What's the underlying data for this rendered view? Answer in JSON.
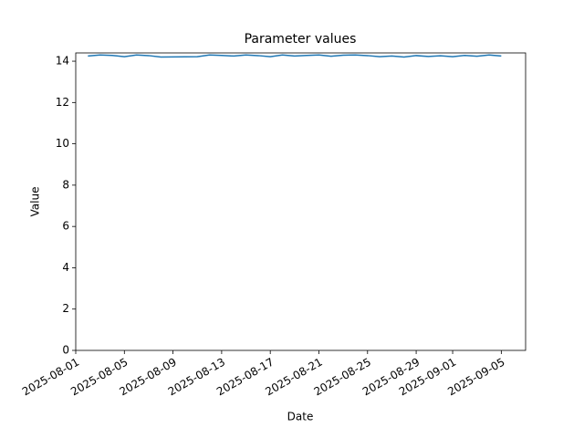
{
  "chart_data": {
    "type": "line",
    "title": "Parameter values",
    "x_label": "Date",
    "y_label": "Value",
    "x": [
      "2025-08-02",
      "2025-08-03",
      "2025-08-04",
      "2025-08-05",
      "2025-08-06",
      "2025-08-07",
      "2025-08-08",
      "2025-08-11",
      "2025-08-12",
      "2025-08-13",
      "2025-08-14",
      "2025-08-15",
      "2025-08-16",
      "2025-08-17",
      "2025-08-18",
      "2025-08-19",
      "2025-08-20",
      "2025-08-21",
      "2025-08-22",
      "2025-08-23",
      "2025-08-24",
      "2025-08-25",
      "2025-08-26",
      "2025-08-27",
      "2025-08-28",
      "2025-08-29",
      "2025-08-30",
      "2025-08-31",
      "2025-09-01",
      "2025-09-02",
      "2025-09-03",
      "2025-09-04",
      "2025-09-05"
    ],
    "values": [
      14.25,
      14.3,
      14.28,
      14.22,
      14.3,
      14.27,
      14.2,
      14.22,
      14.3,
      14.28,
      14.25,
      14.3,
      14.27,
      14.22,
      14.3,
      14.25,
      14.28,
      14.3,
      14.24,
      14.29,
      14.3,
      14.27,
      14.22,
      14.25,
      14.2,
      14.27,
      14.23,
      14.26,
      14.22,
      14.28,
      14.24,
      14.3,
      14.25
    ],
    "color": "#1f77b4",
    "xlim": [
      "2025-08-01",
      "2025-09-07"
    ],
    "xticks": [
      "2025-08-01",
      "2025-08-05",
      "2025-08-09",
      "2025-08-13",
      "2025-08-17",
      "2025-08-21",
      "2025-08-25",
      "2025-08-29",
      "2025-09-01",
      "2025-09-05"
    ],
    "ylim": [
      0,
      14.4
    ],
    "yticks": [
      0,
      2,
      4,
      6,
      8,
      10,
      12,
      14
    ]
  }
}
